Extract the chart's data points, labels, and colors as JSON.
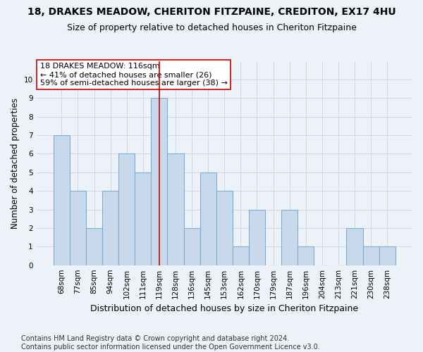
{
  "title": "18, DRAKES MEADOW, CHERITON FITZPAINE, CREDITON, EX17 4HU",
  "subtitle": "Size of property relative to detached houses in Cheriton Fitzpaine",
  "xlabel": "Distribution of detached houses by size in Cheriton Fitzpaine",
  "ylabel": "Number of detached properties",
  "categories": [
    "68sqm",
    "77sqm",
    "85sqm",
    "94sqm",
    "102sqm",
    "111sqm",
    "119sqm",
    "128sqm",
    "136sqm",
    "145sqm",
    "153sqm",
    "162sqm",
    "170sqm",
    "179sqm",
    "187sqm",
    "196sqm",
    "204sqm",
    "213sqm",
    "221sqm",
    "230sqm",
    "238sqm"
  ],
  "values": [
    7,
    4,
    2,
    4,
    6,
    5,
    9,
    6,
    2,
    5,
    4,
    1,
    3,
    0,
    3,
    1,
    0,
    0,
    2,
    1,
    1
  ],
  "bar_color": "#c9d9ec",
  "bar_edge_color": "#7aadd4",
  "highlight_index": 6,
  "highlight_line_color": "#cc0000",
  "annotation_line1": "18 DRAKES MEADOW: 116sqm",
  "annotation_line2": "← 41% of detached houses are smaller (26)",
  "annotation_line3": "59% of semi-detached houses are larger (38) →",
  "annotation_box_color": "#ffffff",
  "annotation_box_edge_color": "#cc0000",
  "ylim": [
    0,
    11
  ],
  "yticks": [
    0,
    1,
    2,
    3,
    4,
    5,
    6,
    7,
    8,
    9,
    10,
    11
  ],
  "grid_color": "#d0d8e8",
  "bg_color": "#edf2f9",
  "footer": "Contains HM Land Registry data © Crown copyright and database right 2024.\nContains public sector information licensed under the Open Government Licence v3.0.",
  "title_fontsize": 10,
  "subtitle_fontsize": 9,
  "xlabel_fontsize": 9,
  "ylabel_fontsize": 8.5,
  "footer_fontsize": 7,
  "annotation_fontsize": 8,
  "tick_fontsize": 7.5
}
